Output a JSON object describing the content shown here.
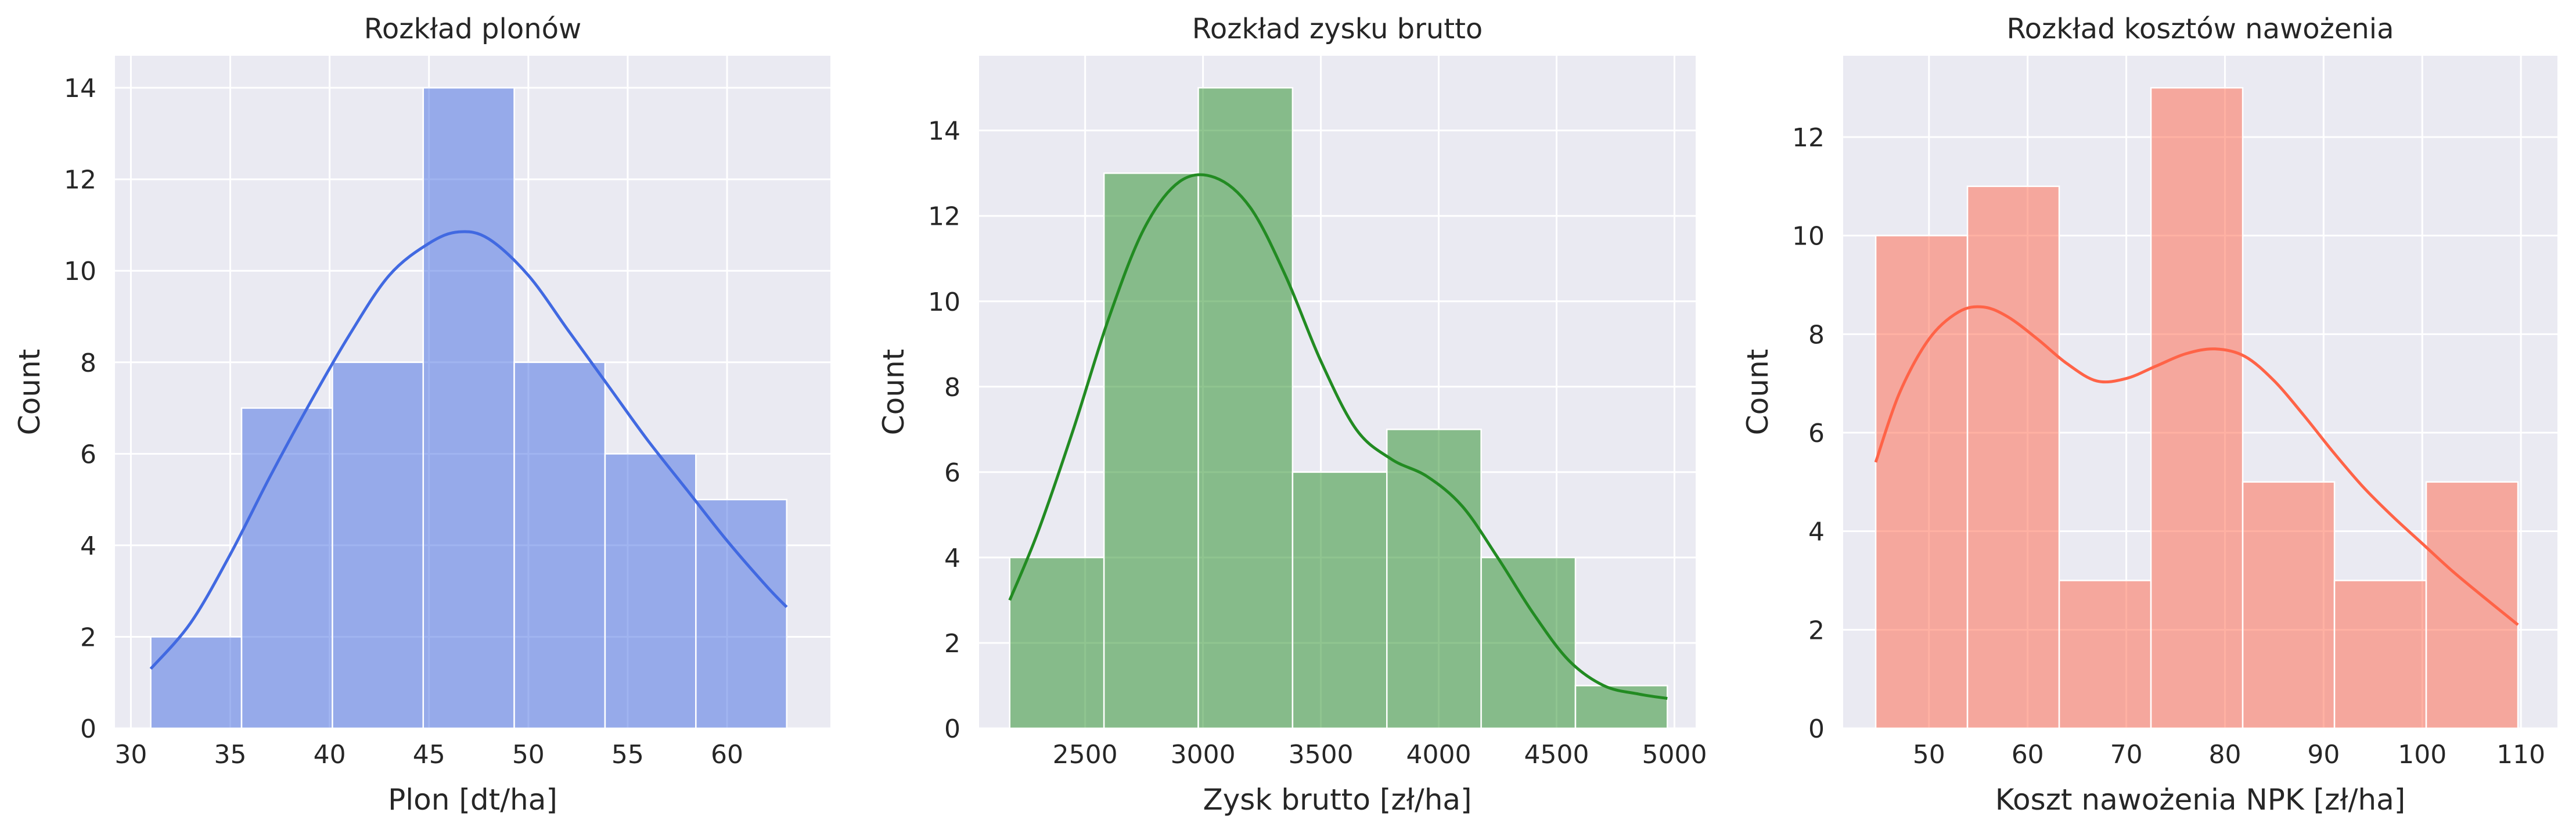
{
  "chart_data": [
    {
      "type": "histogram",
      "title": "Rozkład plonów",
      "xlabel": "Plon [dt/ha]",
      "ylabel": "Count",
      "color": "#4169E1",
      "bar_opacity": 0.5,
      "kde": true,
      "xlim": [
        29.2,
        65.2
      ],
      "ylim": [
        0,
        14.7
      ],
      "xticks": [
        30,
        35,
        40,
        45,
        50,
        55,
        60
      ],
      "yticks": [
        0,
        2,
        4,
        6,
        8,
        10,
        12,
        14
      ],
      "bin_edges": [
        31.0,
        35.57,
        40.14,
        44.71,
        49.29,
        53.86,
        58.43,
        63.0
      ],
      "counts": [
        2,
        7,
        8,
        14,
        8,
        6,
        5
      ],
      "kde_curve": {
        "x": [
          31.0,
          33.0,
          35.0,
          37.0,
          39.0,
          41.0,
          43.0,
          45.0,
          46.5,
          48.0,
          50.0,
          52.0,
          54.0,
          56.0,
          58.0,
          60.0,
          62.0,
          63.0
        ],
        "y": [
          1.3,
          2.3,
          3.8,
          5.5,
          7.1,
          8.6,
          9.9,
          10.6,
          10.85,
          10.7,
          9.9,
          8.7,
          7.5,
          6.3,
          5.2,
          4.1,
          3.1,
          2.65
        ]
      }
    },
    {
      "type": "histogram",
      "title": "Rozkład zysku brutto",
      "xlabel": "Zysk brutto [zł/ha]",
      "ylabel": "Count",
      "color": "#228B22",
      "bar_opacity": 0.5,
      "kde": true,
      "xlim": [
        2050,
        5090
      ],
      "ylim": [
        0,
        15.75
      ],
      "xticks": [
        2500,
        3000,
        3500,
        4000,
        4500,
        5000
      ],
      "yticks": [
        0,
        2,
        4,
        6,
        8,
        10,
        12,
        14
      ],
      "bin_edges": [
        2180,
        2580,
        2980,
        3380,
        3780,
        4180,
        4580,
        4970
      ],
      "counts": [
        4,
        13,
        15,
        6,
        7,
        4,
        1
      ],
      "kde_curve": {
        "x": [
          2180,
          2300,
          2450,
          2600,
          2750,
          2900,
          3050,
          3200,
          3350,
          3500,
          3650,
          3800,
          3950,
          4100,
          4250,
          4400,
          4550,
          4700,
          4850,
          4970
        ],
        "y": [
          3.0,
          4.6,
          7.0,
          9.6,
          11.7,
          12.8,
          12.9,
          12.2,
          10.6,
          8.6,
          7.0,
          6.3,
          5.9,
          5.2,
          4.0,
          2.7,
          1.6,
          1.0,
          0.8,
          0.7
        ]
      }
    },
    {
      "type": "histogram",
      "title": "Rozkład kosztów nawożenia",
      "xlabel": "Koszt nawożenia NPK [zł/ha]",
      "ylabel": "Count",
      "color": "#FF6347",
      "bar_opacity": 0.5,
      "kde": true,
      "xlim": [
        41.3,
        113.7
      ],
      "ylim": [
        0,
        13.65
      ],
      "xticks": [
        50,
        60,
        70,
        80,
        90,
        100,
        110
      ],
      "yticks": [
        0,
        2,
        4,
        6,
        8,
        10,
        12
      ],
      "bin_edges": [
        44.6,
        53.9,
        63.2,
        72.5,
        81.8,
        91.1,
        100.4,
        109.7
      ],
      "counts": [
        10,
        11,
        3,
        13,
        5,
        3,
        5
      ],
      "kde_curve": {
        "x": [
          44.6,
          47.0,
          50.0,
          53.0,
          55.5,
          58.0,
          61.0,
          64.0,
          67.0,
          70.0,
          73.0,
          76.0,
          79.0,
          82.0,
          85.0,
          88.0,
          91.0,
          94.0,
          97.0,
          100.0,
          103.0,
          106.0,
          109.7
        ],
        "y": [
          5.4,
          6.8,
          7.9,
          8.45,
          8.55,
          8.35,
          7.9,
          7.4,
          7.05,
          7.1,
          7.35,
          7.6,
          7.7,
          7.55,
          7.05,
          6.35,
          5.6,
          4.9,
          4.3,
          3.75,
          3.2,
          2.7,
          2.1
        ]
      }
    }
  ]
}
